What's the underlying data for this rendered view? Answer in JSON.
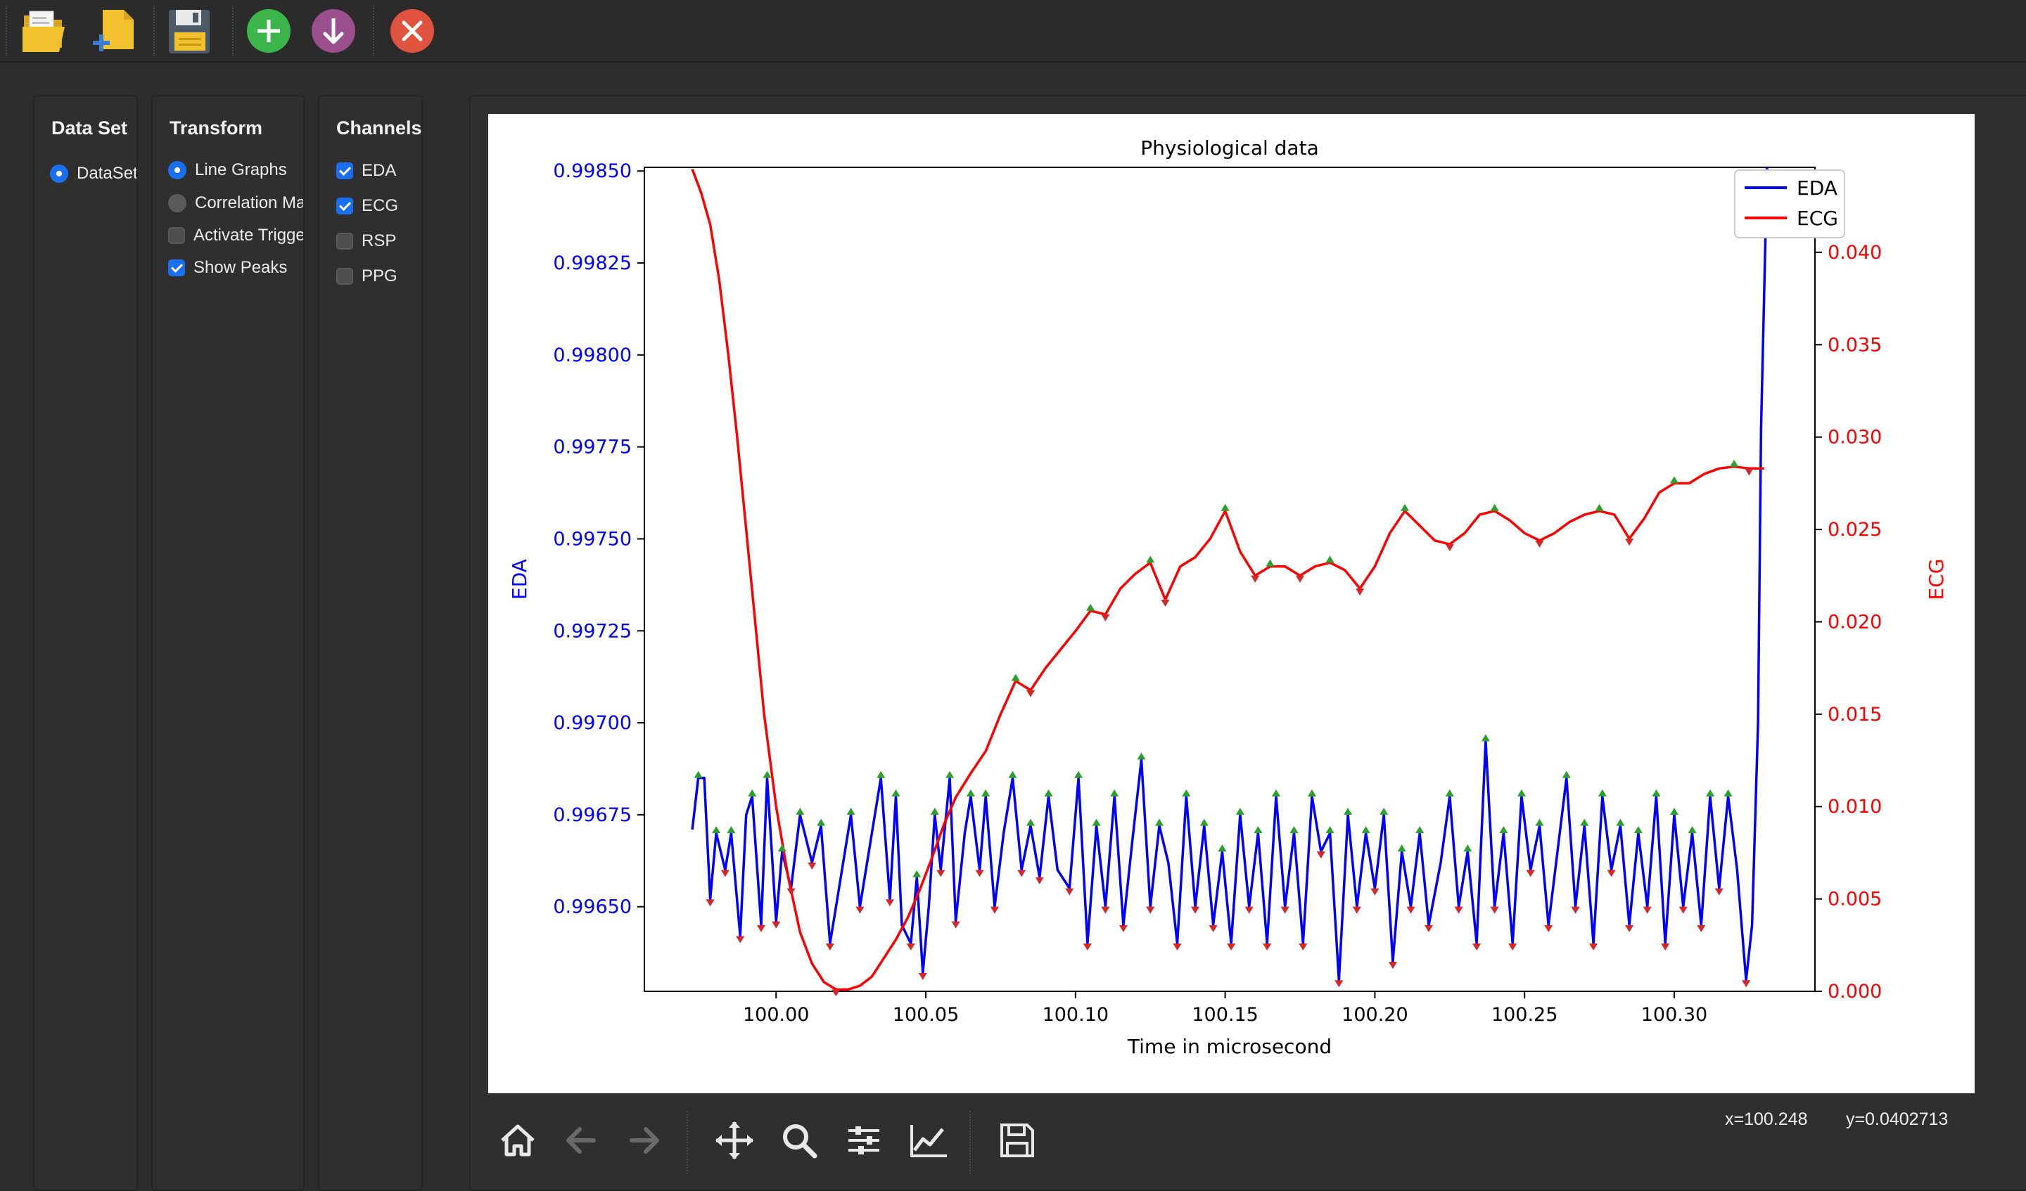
{
  "toolbar": {
    "buttons": [
      {
        "name": "open-file-button",
        "icon": "folder-open-icon"
      },
      {
        "name": "new-file-button",
        "icon": "new-document-icon"
      },
      {
        "name": "save-button",
        "icon": "floppy-disk-icon"
      },
      {
        "name": "add-button",
        "icon": "plus-circle-icon"
      },
      {
        "name": "download-button",
        "icon": "arrow-down-circle-icon"
      },
      {
        "name": "close-button",
        "icon": "close-circle-icon"
      }
    ],
    "colors": {
      "add": "#3cb54a",
      "download": "#9b4f8e",
      "close": "#e0533f",
      "folder": "#f2c12e"
    }
  },
  "dataset_panel": {
    "title": "Data Set",
    "options": [
      {
        "label": "DataSet",
        "selected": true
      }
    ]
  },
  "transform_panel": {
    "title": "Transform",
    "radios": [
      {
        "label": "Line Graphs",
        "selected": true
      },
      {
        "label": "Correlation Matrix",
        "selected": false
      }
    ],
    "checks": [
      {
        "label": "Activate Trigger",
        "checked": false
      },
      {
        "label": "Show Peaks",
        "checked": true
      }
    ]
  },
  "channels_panel": {
    "title": "Channels",
    "channels": [
      {
        "label": "EDA",
        "checked": true
      },
      {
        "label": "ECG",
        "checked": true
      },
      {
        "label": "RSP",
        "checked": false
      },
      {
        "label": "PPG",
        "checked": false
      }
    ]
  },
  "chart_data": {
    "type": "line",
    "title": "Physiological data",
    "xlabel": "Time in microsecond",
    "ylabel_left": "EDA",
    "ylabel_right": "ECG",
    "xlim": [
      99.956,
      100.347
    ],
    "ylim_left": [
      0.99627,
      0.99851
    ],
    "ylim_right": [
      0.0,
      0.0446
    ],
    "x_ticks": [
      "100.00",
      "100.05",
      "100.10",
      "100.15",
      "100.20",
      "100.25",
      "100.30"
    ],
    "x_tick_values": [
      100.0,
      100.05,
      100.1,
      100.15,
      100.2,
      100.25,
      100.3
    ],
    "y_left_ticks": [
      "0.99650",
      "0.99675",
      "0.99700",
      "0.99725",
      "0.99750",
      "0.99775",
      "0.99800",
      "0.99825",
      "0.99850"
    ],
    "y_left_tick_values": [
      0.9965,
      0.99675,
      0.997,
      0.99725,
      0.9975,
      0.99775,
      0.998,
      0.99825,
      0.9985
    ],
    "y_right_ticks": [
      "0.000",
      "0.005",
      "0.010",
      "0.015",
      "0.020",
      "0.025",
      "0.030",
      "0.035",
      "0.040"
    ],
    "y_right_tick_values": [
      0.0,
      0.005,
      0.01,
      0.015,
      0.02,
      0.025,
      0.03,
      0.035,
      0.04
    ],
    "legend": [
      {
        "label": "EDA",
        "color": "#0000ff"
      },
      {
        "label": "ECG",
        "color": "#ff0000"
      }
    ],
    "legend_position": "top-right",
    "grid": false,
    "show_peaks": true,
    "peak_marker_color": "#2ca02c",
    "trough_marker_color": "#d62728",
    "series": [
      {
        "name": "EDA",
        "axis": "left",
        "color": "#0000ff",
        "x": [
          99.972,
          99.974,
          99.976,
          99.978,
          99.98,
          99.983,
          99.985,
          99.988,
          99.99,
          99.992,
          99.995,
          99.997,
          100.0,
          100.002,
          100.005,
          100.008,
          100.012,
          100.015,
          100.018,
          100.022,
          100.025,
          100.028,
          100.032,
          100.035,
          100.038,
          100.04,
          100.042,
          100.045,
          100.047,
          100.049,
          100.051,
          100.053,
          100.055,
          100.058,
          100.06,
          100.063,
          100.065,
          100.068,
          100.07,
          100.073,
          100.076,
          100.079,
          100.082,
          100.085,
          100.088,
          100.091,
          100.094,
          100.098,
          100.101,
          100.104,
          100.107,
          100.11,
          100.113,
          100.116,
          100.119,
          100.122,
          100.125,
          100.128,
          100.131,
          100.134,
          100.137,
          100.14,
          100.143,
          100.146,
          100.149,
          100.152,
          100.155,
          100.158,
          100.161,
          100.164,
          100.167,
          100.17,
          100.173,
          100.176,
          100.179,
          100.182,
          100.185,
          100.188,
          100.191,
          100.194,
          100.197,
          100.2,
          100.203,
          100.206,
          100.209,
          100.212,
          100.215,
          100.218,
          100.222,
          100.225,
          100.228,
          100.231,
          100.234,
          100.237,
          100.24,
          100.243,
          100.246,
          100.249,
          100.252,
          100.255,
          100.258,
          100.261,
          100.264,
          100.267,
          100.27,
          100.273,
          100.276,
          100.279,
          100.282,
          100.285,
          100.288,
          100.291,
          100.294,
          100.297,
          100.3,
          100.303,
          100.306,
          100.309,
          100.312,
          100.315,
          100.318,
          100.321,
          100.324,
          100.326,
          100.328,
          100.329,
          100.331
        ],
        "y": [
          0.99671,
          0.99685,
          0.99685,
          0.99652,
          0.9967,
          0.9966,
          0.9967,
          0.99642,
          0.99675,
          0.9968,
          0.99645,
          0.99685,
          0.99646,
          0.99665,
          0.99655,
          0.99675,
          0.99662,
          0.99672,
          0.9964,
          0.9966,
          0.99675,
          0.9965,
          0.9967,
          0.99685,
          0.99652,
          0.9968,
          0.99645,
          0.9964,
          0.99658,
          0.99632,
          0.9965,
          0.99675,
          0.9966,
          0.99685,
          0.99646,
          0.9967,
          0.9968,
          0.9966,
          0.9968,
          0.9965,
          0.9967,
          0.99685,
          0.9966,
          0.99672,
          0.99658,
          0.9968,
          0.9966,
          0.99655,
          0.99685,
          0.9964,
          0.99672,
          0.9965,
          0.9968,
          0.99645,
          0.99668,
          0.9969,
          0.9965,
          0.99672,
          0.99662,
          0.9964,
          0.9968,
          0.9965,
          0.99672,
          0.99645,
          0.99665,
          0.9964,
          0.99675,
          0.9965,
          0.9967,
          0.9964,
          0.9968,
          0.9965,
          0.9967,
          0.9964,
          0.9968,
          0.99665,
          0.9967,
          0.9963,
          0.99675,
          0.9965,
          0.9967,
          0.99655,
          0.99675,
          0.99635,
          0.99665,
          0.9965,
          0.9967,
          0.99645,
          0.99662,
          0.9968,
          0.9965,
          0.99665,
          0.9964,
          0.99695,
          0.9965,
          0.9967,
          0.9964,
          0.9968,
          0.9966,
          0.99672,
          0.99645,
          0.99665,
          0.99685,
          0.9965,
          0.99672,
          0.9964,
          0.9968,
          0.9966,
          0.99672,
          0.99645,
          0.9967,
          0.9965,
          0.9968,
          0.9964,
          0.99675,
          0.9965,
          0.9967,
          0.99645,
          0.9968,
          0.99655,
          0.9968,
          0.9966,
          0.9963,
          0.99645,
          0.997,
          0.9978,
          0.99851
        ]
      },
      {
        "name": "ECG",
        "axis": "right",
        "color": "#ff0000",
        "x": [
          99.972,
          99.975,
          99.978,
          99.981,
          99.984,
          99.987,
          99.99,
          99.993,
          99.996,
          100.0,
          100.004,
          100.008,
          100.012,
          100.016,
          100.02,
          100.024,
          100.028,
          100.032,
          100.036,
          100.04,
          100.044,
          100.048,
          100.052,
          100.056,
          100.06,
          100.065,
          100.07,
          100.075,
          100.08,
          100.085,
          100.09,
          100.095,
          100.1,
          100.105,
          100.11,
          100.115,
          100.12,
          100.125,
          100.13,
          100.135,
          100.14,
          100.145,
          100.15,
          100.155,
          100.16,
          100.165,
          100.17,
          100.175,
          100.18,
          100.185,
          100.19,
          100.195,
          100.2,
          100.205,
          100.21,
          100.215,
          100.22,
          100.225,
          100.23,
          100.235,
          100.24,
          100.245,
          100.25,
          100.255,
          100.26,
          100.265,
          100.27,
          100.275,
          100.28,
          100.285,
          100.29,
          100.295,
          100.3,
          100.305,
          100.31,
          100.315,
          100.32,
          100.325,
          100.33
        ],
        "y": [
          0.0445,
          0.0432,
          0.0415,
          0.0385,
          0.0345,
          0.03,
          0.025,
          0.02,
          0.015,
          0.01,
          0.0062,
          0.0032,
          0.0015,
          0.0005,
          0.0001,
          0.0001,
          0.0003,
          0.0008,
          0.0018,
          0.0028,
          0.004,
          0.0055,
          0.0072,
          0.009,
          0.0105,
          0.0118,
          0.013,
          0.015,
          0.0168,
          0.0163,
          0.0175,
          0.0185,
          0.0195,
          0.0206,
          0.0204,
          0.0218,
          0.0226,
          0.0232,
          0.0212,
          0.023,
          0.0235,
          0.0245,
          0.026,
          0.0238,
          0.0225,
          0.023,
          0.023,
          0.0225,
          0.023,
          0.0232,
          0.0228,
          0.0218,
          0.023,
          0.0248,
          0.026,
          0.0252,
          0.0244,
          0.0242,
          0.0248,
          0.0258,
          0.026,
          0.0255,
          0.0248,
          0.0244,
          0.0248,
          0.0254,
          0.0258,
          0.026,
          0.0258,
          0.0245,
          0.0256,
          0.027,
          0.0275,
          0.0275,
          0.028,
          0.0283,
          0.0284,
          0.0283,
          0.0283
        ]
      }
    ]
  },
  "plot_toolbar": {
    "buttons": [
      {
        "name": "home-button",
        "icon": "home-icon"
      },
      {
        "name": "back-button",
        "icon": "arrow-left-icon"
      },
      {
        "name": "forward-button",
        "icon": "arrow-right-icon"
      },
      {
        "name": "pan-button",
        "icon": "move-icon"
      },
      {
        "name": "zoom-button",
        "icon": "magnifier-icon"
      },
      {
        "name": "configure-subplots-button",
        "icon": "sliders-icon"
      },
      {
        "name": "edit-axis-button",
        "icon": "line-chart-icon"
      },
      {
        "name": "save-figure-button",
        "icon": "floppy-disk-icon"
      }
    ],
    "coord_x": "x=100.248",
    "coord_y": "y=0.0402713"
  }
}
